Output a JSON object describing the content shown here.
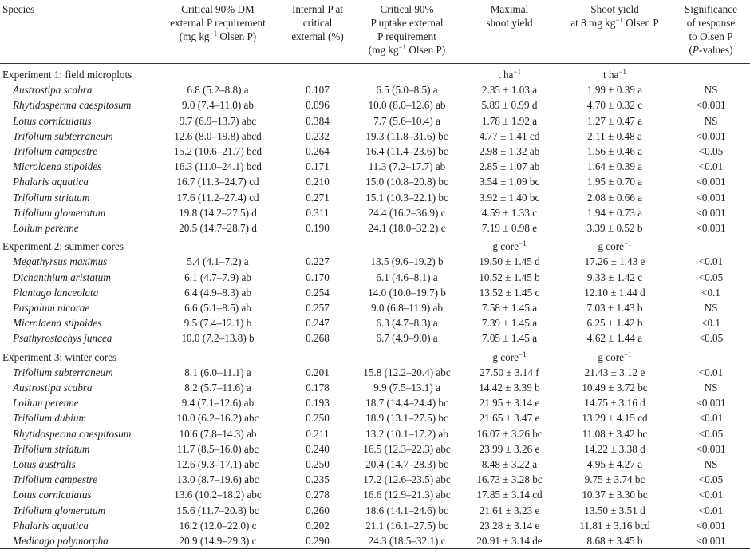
{
  "header": {
    "col0": [
      "Species"
    ],
    "col1": [
      "Critical 90% DM",
      "external P requirement",
      "(mg kg",
      "−1",
      " Olsen P)"
    ],
    "col2": [
      "Internal P at",
      "critical",
      "external (%)"
    ],
    "col3": [
      "Critical 90%",
      "P uptake external",
      "P requirement",
      "(mg kg",
      "−1",
      " Olsen P)"
    ],
    "col4": [
      "Maximal",
      "shoot yield"
    ],
    "col5": [
      "Shoot yield",
      "at 8 mg kg",
      "−1",
      " Olsen P"
    ],
    "col6": [
      "Significance",
      "of response",
      "to Olsen P",
      "(",
      "P",
      "-values)"
    ]
  },
  "experiments": [
    {
      "title": "Experiment 1: field microplots",
      "unit_base": "t ha",
      "unit_exp": "−1",
      "rows": [
        {
          "species": "Austrostipa scabra",
          "c1": "6.8 (5.2–8.8) a",
          "c2": "0.107",
          "c3": "6.5 (5.0–8.5) a",
          "c4": "2.35 ± 1.03 a",
          "c5": "1.99 ± 0.39 a",
          "c6": "NS"
        },
        {
          "species": "Rhytidosperma caespitosum",
          "c1": "9.0 (7.4–11.0) ab",
          "c2": "0.096",
          "c3": "10.0 (8.0–12.6) ab",
          "c4": "5.89 ± 0.99 d",
          "c5": "4.70 ± 0.32 c",
          "c6": "<0.001"
        },
        {
          "species": "Lotus corniculatus",
          "c1": "9.7 (6.9–13.7) abc",
          "c2": "0.384",
          "c3": "7.7 (5.6–10.4) a",
          "c4": "1.78 ± 1.92 a",
          "c5": "1.27 ± 0.47 a",
          "c6": "NS"
        },
        {
          "species": "Trifolium subterraneum",
          "c1": "12.6 (8.0–19.8) abcd",
          "c2": "0.232",
          "c3": "19.3 (11.8–31.6) bc",
          "c4": "4.77 ± 1.41 cd",
          "c5": "2.11 ± 0.48 a",
          "c6": "<0.001"
        },
        {
          "species": "Trifolium campestre",
          "c1": "15.2 (10.6–21.7) bcd",
          "c2": "0.264",
          "c3": "16.4 (11.4–23.6) bc",
          "c4": "2.98 ± 1.32 ab",
          "c5": "1.56 ± 0.46 a",
          "c6": "<0.05"
        },
        {
          "species": "Microlaena stipoides",
          "c1": "16.3 (11.0–24.1) bcd",
          "c2": "0.171",
          "c3": "11.3 (7.2–17.7) ab",
          "c4": "2.85 ± 1.07 ab",
          "c5": "1.64 ± 0.39 a",
          "c6": "<0.01"
        },
        {
          "species": "Phalaris aquatica",
          "c1": "16.7 (11.3–24.7) cd",
          "c2": "0.210",
          "c3": "15.0 (10.8–20.8) bc",
          "c4": "3.54 ± 1.09 bc",
          "c5": "1.95 ± 0.70 a",
          "c6": "<0.001"
        },
        {
          "species": "Trifolium striatum",
          "c1": "17.6 (11.2–27.4) cd",
          "c2": "0.271",
          "c3": "15.1 (10.3–22.1) bc",
          "c4": "3.92 ± 1.40 bc",
          "c5": "2.08 ± 0.66 a",
          "c6": "<0.001"
        },
        {
          "species": "Trifolium glomeratum",
          "c1": "19.8 (14.2–27.5) d",
          "c2": "0.311",
          "c3": "24.4 (16.2–36.9) c",
          "c4": "4.59 ± 1.33 c",
          "c5": "1.94 ± 0.73 a",
          "c6": "<0.001"
        },
        {
          "species": "Lolium perenne",
          "c1": "20.5 (14.7–28.7) d",
          "c2": "0.190",
          "c3": "24.1 (18.0–32.2) c",
          "c4": "7.19 ± 0.98 e",
          "c5": "3.39 ± 0.52 b",
          "c6": "<0.001"
        }
      ]
    },
    {
      "title": "Experiment 2: summer cores",
      "unit_base": "g core",
      "unit_exp": "−1",
      "rows": [
        {
          "species": "Megathyrsus maximus",
          "c1": "5.4 (4.1–7.2) a",
          "c2": "0.227",
          "c3": "13.5 (9.6–19.2) b",
          "c4": "19.50 ± 1.45 d",
          "c5": "17.26 ± 1.43 e",
          "c6": "<0.01"
        },
        {
          "species": "Dichanthium aristatum",
          "c1": "6.1 (4.7–7.9) ab",
          "c2": "0.170",
          "c3": "6.1 (4.6–8.1) a",
          "c4": "10.52 ± 1.45 b",
          "c5": "9.33 ± 1.42 c",
          "c6": "<0.05"
        },
        {
          "species": "Plantago lanceolata",
          "c1": "6.4 (4.9–8.3) ab",
          "c2": "0.254",
          "c3": "14.0 (10.0–19.7) b",
          "c4": "13.52 ± 1.45 c",
          "c5": "12.10 ± 1.44 d",
          "c6": "<0.1"
        },
        {
          "species": "Paspalum nicorae",
          "c1": "6.6 (5.1–8.5) ab",
          "c2": "0.257",
          "c3": "9.0 (6.8–11.9) ab",
          "c4": "7.58 ± 1.45 a",
          "c5": "7.03 ± 1.43 b",
          "c6": "NS"
        },
        {
          "species": "Microlaena stipoides",
          "c1": "9.5 (7.4–12.1) b",
          "c2": "0.247",
          "c3": "6.3 (4.7–8.3) a",
          "c4": "7.39 ± 1.45 a",
          "c5": "6.25 ± 1.42 b",
          "c6": "<0.1"
        },
        {
          "species": "Psathyrostachys juncea",
          "c1": "10.0 (7.2–13.8) b",
          "c2": "0.268",
          "c3": "6.7 (4.9–9.0) a",
          "c4": "7.05 ± 1.45 a",
          "c5": "4.62 ± 1.44 a",
          "c6": "<0.05"
        }
      ]
    },
    {
      "title": "Experiment 3: winter cores",
      "unit_base": "g core",
      "unit_exp": "−1",
      "rows": [
        {
          "species": "Trifolium subterraneum",
          "c1": "8.1 (6.0–11.1) a",
          "c2": "0.201",
          "c3": "15.8 (12.2–20.4) abc",
          "c4": "27.50 ± 3.14 f",
          "c5": "21.43 ± 3.12 e",
          "c6": "<0.01"
        },
        {
          "species": "Austrostipa scabra",
          "c1": "8.2 (5.7–11.6) a",
          "c2": "0.178",
          "c3": "9.9 (7.5–13.1) a",
          "c4": "14.42 ± 3.39 b",
          "c5": "10.49 ± 3.72 bc",
          "c6": "NS"
        },
        {
          "species": "Lolium perenne",
          "c1": "9.4 (7.1–12.6) ab",
          "c2": "0.193",
          "c3": "18.7 (14.4–24.4) bc",
          "c4": "21.95 ± 3.14 e",
          "c5": "14.75 ± 3.16 d",
          "c6": "<0.001"
        },
        {
          "species": "Trifolium dubium",
          "c1": "10.0 (6.2–16.2) abc",
          "c2": "0.250",
          "c3": "18.9 (13.1–27.5) bc",
          "c4": "21.65 ± 3.47 e",
          "c5": "13.29 ± 4.15 cd",
          "c6": "<0.01"
        },
        {
          "species": "Rhytidosperma caespitosum",
          "c1": "10.6 (7.8–14.3) ab",
          "c2": "0.211",
          "c3": "13.2 (10.1–17.2) ab",
          "c4": "16.07 ± 3.26 bc",
          "c5": "11.08 ± 3.42 bc",
          "c6": "<0.05"
        },
        {
          "species": "Trifolium striatum",
          "c1": "11.7 (8.5–16.0) abc",
          "c2": "0.240",
          "c3": "16.5 (12.3–22.3) abc",
          "c4": "23.99 ± 3.26 e",
          "c5": "14.22 ± 3.38 d",
          "c6": "<0.001"
        },
        {
          "species": "Lotus australis",
          "c1": "12.6 (9.3–17.1) abc",
          "c2": "0.250",
          "c3": "20.4 (14.7–28.3) bc",
          "c4": "8.48 ± 3.22 a",
          "c5": "4.95 ± 4.27 a",
          "c6": "NS"
        },
        {
          "species": "Trifolium campestre",
          "c1": "13.0 (8.7–19.6) abc",
          "c2": "0.235",
          "c3": "17.2 (12.6–23.5) abc",
          "c4": "16.73 ± 3.28 bc",
          "c5": "9.75 ± 3.74 bc",
          "c6": "<0.05"
        },
        {
          "species": "Lotus corniculatus",
          "c1": "13.6 (10.2–18.2) abc",
          "c2": "0.278",
          "c3": "16.6 (12.9–21.3) abc",
          "c4": "17.85 ± 3.14 cd",
          "c5": "10.37 ± 3.30 bc",
          "c6": "<0.01"
        },
        {
          "species": "Trifolium glomeratum",
          "c1": "15.6 (11.7–20.8) bc",
          "c2": "0.260",
          "c3": "18.6 (14.1–24.6) bc",
          "c4": "21.61 ± 3.23 e",
          "c5": "13.50 ± 3.51 d",
          "c6": "<0.01"
        },
        {
          "species": "Phalaris aquatica",
          "c1": "16.2 (12.0–22.0) c",
          "c2": "0.202",
          "c3": "21.1 (16.1–27.5) bc",
          "c4": "23.28 ± 3.14 e",
          "c5": "11.81 ± 3.16 bcd",
          "c6": "<0.001"
        },
        {
          "species": "Medicago polymorpha",
          "c1": "20.9 (14.9–29.3) c",
          "c2": "0.290",
          "c3": "24.3 (18.5–32.1) c",
          "c4": "20.91 ± 3.14 de",
          "c5": "8.68 ± 3.45 b",
          "c6": "<0.001"
        }
      ]
    }
  ]
}
